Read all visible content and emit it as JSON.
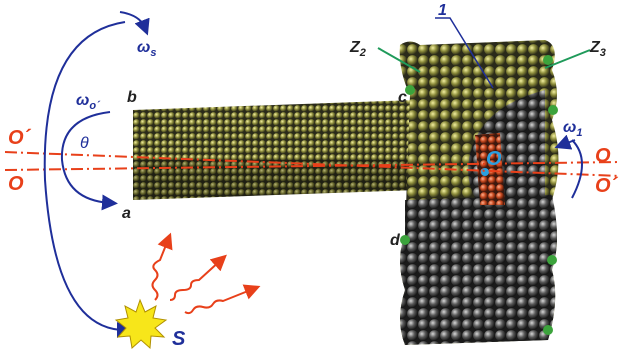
{
  "labels": {
    "omega_s": {
      "symbol": "ω",
      "sub": "s"
    },
    "omega_o": {
      "symbol": "ω",
      "sub": "o´"
    },
    "theta": "θ",
    "b": "b",
    "a": "a",
    "c": "c",
    "d": "d",
    "o_prime_left": "O´",
    "o_left": "O",
    "one": "1",
    "z2": {
      "symbol": "Z",
      "sub": "2"
    },
    "z3": {
      "symbol": "Z",
      "sub": "3"
    },
    "omega_1": {
      "symbol": "ω",
      "sub": "1"
    },
    "o_right": "O",
    "o_prime_right": "O´",
    "o_center": "O",
    "s": "S"
  }
}
